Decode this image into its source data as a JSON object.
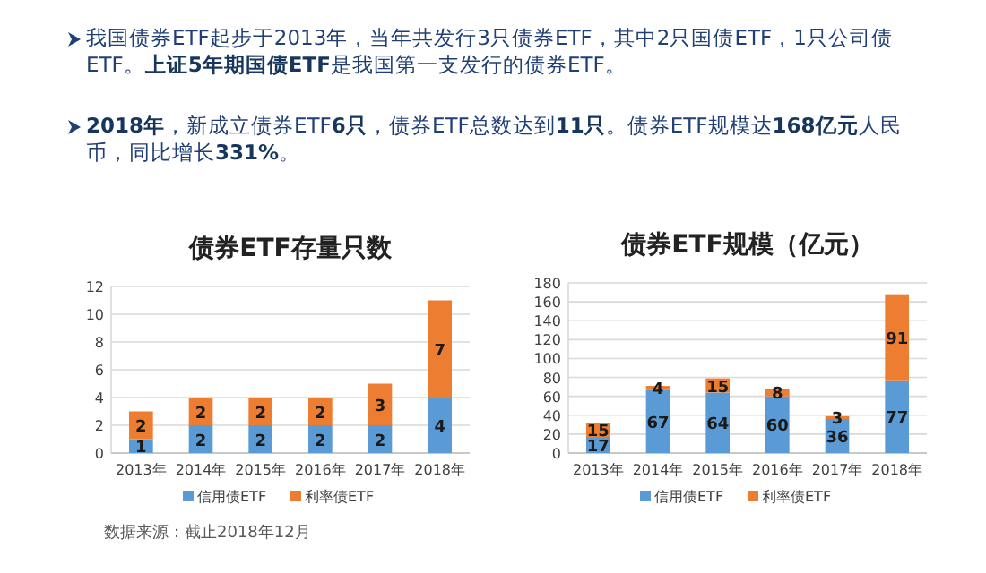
{
  "chart_data": [
    {
      "type": "other",
      "annotations": [
        "我国债券ETF起步于2013年，当年共发行3只债券ETF，其中2只国债ETF，1只公司债ETF。**上证5年期国债ETF**是我国第一支发行的债券ETF。",
        "**2018年**，新成立债券ETF**6只**，债券ETF总数达到**11只**。债券ETF规模达**168亿元**人民币，同比增长**331%**。"
      ]
    },
    {
      "type": "bar",
      "title": "债券ETF存量只数",
      "stacked": true,
      "categories": [
        "2013年",
        "2014年",
        "2015年",
        "2016年",
        "2017年",
        "2018年"
      ],
      "series": [
        {
          "name": "信用债ETF",
          "color": "#5b9bd5",
          "values": [
            1,
            2,
            2,
            2,
            2,
            4
          ]
        },
        {
          "name": "利率债ETF",
          "color": "#ed7d31",
          "values": [
            2,
            2,
            2,
            2,
            3,
            7
          ]
        }
      ],
      "ylim": [
        0,
        12
      ],
      "yticks": [
        0,
        2,
        4,
        6,
        8,
        10,
        12
      ],
      "grid": "y",
      "legend": "bottom",
      "data_labels": true,
      "annotations": [
        "数据来源：截止2018年12月"
      ]
    },
    {
      "type": "bar",
      "title": "债券ETF规模（亿元）",
      "stacked": true,
      "categories": [
        "2013年",
        "2014年",
        "2015年",
        "2016年",
        "2017年",
        "2018年"
      ],
      "series": [
        {
          "name": "信用债ETF",
          "color": "#5b9bd5",
          "values": [
            17,
            67,
            64,
            60,
            36,
            77
          ]
        },
        {
          "name": "利率债ETF",
          "color": "#ed7d31",
          "values": [
            15,
            4,
            15,
            8,
            3,
            91
          ]
        }
      ],
      "ylim": [
        0,
        180
      ],
      "yticks": [
        0,
        20,
        40,
        60,
        80,
        100,
        120,
        140,
        160,
        180
      ],
      "grid": "y",
      "legend": "bottom",
      "data_labels": true
    }
  ]
}
